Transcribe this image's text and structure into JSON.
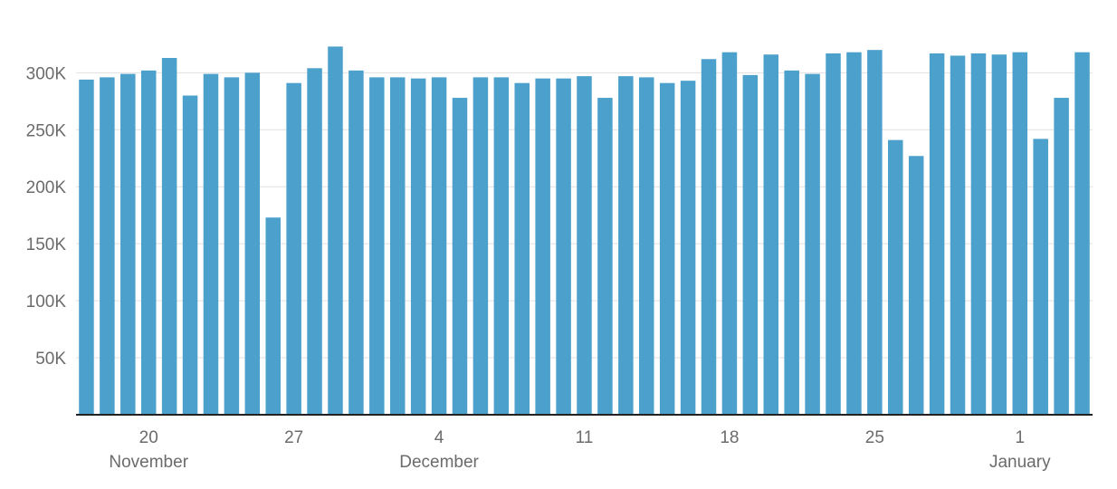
{
  "chart_data": {
    "type": "bar",
    "x": [
      "Nov 17",
      "Nov 18",
      "Nov 19",
      "Nov 20",
      "Nov 21",
      "Nov 22",
      "Nov 23",
      "Nov 24",
      "Nov 25",
      "Nov 26",
      "Nov 27",
      "Nov 28",
      "Nov 29",
      "Nov 30",
      "Dec 1",
      "Dec 2",
      "Dec 3",
      "Dec 4",
      "Dec 5",
      "Dec 6",
      "Dec 7",
      "Dec 8",
      "Dec 9",
      "Dec 10",
      "Dec 11",
      "Dec 12",
      "Dec 13",
      "Dec 14",
      "Dec 15",
      "Dec 16",
      "Dec 17",
      "Dec 18",
      "Dec 19",
      "Dec 20",
      "Dec 21",
      "Dec 22",
      "Dec 23",
      "Dec 24",
      "Dec 25",
      "Dec 26",
      "Dec 27",
      "Dec 28",
      "Dec 29",
      "Dec 30",
      "Dec 31",
      "Jan 1",
      "Jan 2",
      "Jan 3",
      "Jan 4"
    ],
    "values": [
      294000,
      296000,
      299000,
      302000,
      313000,
      280000,
      299000,
      296000,
      300000,
      173000,
      291000,
      304000,
      323000,
      302000,
      296000,
      296000,
      295000,
      296000,
      278000,
      296000,
      296000,
      291000,
      295000,
      295000,
      297000,
      278000,
      297000,
      296000,
      291000,
      293000,
      312000,
      318000,
      298000,
      316000,
      302000,
      299000,
      317000,
      318000,
      320000,
      241000,
      227000,
      317000,
      315000,
      317000,
      316000,
      318000,
      242000,
      278000,
      318000
    ],
    "title": "",
    "xlabel": "",
    "ylabel": "",
    "ylim": [
      0,
      340000
    ],
    "yticks": [
      50000,
      100000,
      150000,
      200000,
      250000,
      300000
    ],
    "ytick_labels": [
      "50K",
      "100K",
      "150K",
      "200K",
      "250K",
      "300K"
    ],
    "xtick_labels": [
      {
        "date": "Nov 20",
        "label": "20",
        "month": "November"
      },
      {
        "date": "Nov 27",
        "label": "27",
        "month": ""
      },
      {
        "date": "Dec 4",
        "label": "4",
        "month": "December"
      },
      {
        "date": "Dec 11",
        "label": "11",
        "month": ""
      },
      {
        "date": "Dec 18",
        "label": "18",
        "month": ""
      },
      {
        "date": "Dec 25",
        "label": "25",
        "month": ""
      },
      {
        "date": "Jan 1",
        "label": "1",
        "month": "January"
      }
    ],
    "grid": true,
    "bar_color": "#4ca0cc"
  }
}
